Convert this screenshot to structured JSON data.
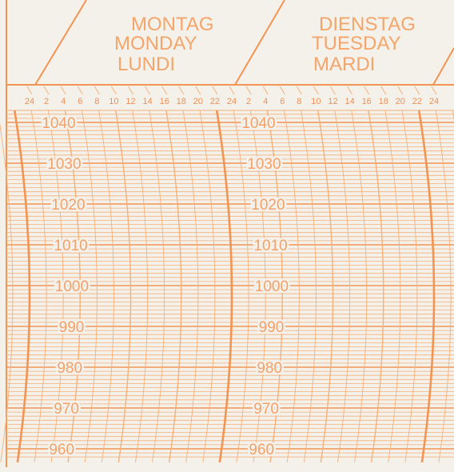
{
  "days": [
    {
      "lines": [
        "MONTAG",
        "MONDAY",
        "LUNDI"
      ]
    },
    {
      "lines": [
        "DIENSTAG",
        "TUESDAY",
        "MARDI"
      ]
    }
  ],
  "hour_ticks": [
    "24",
    "2",
    "4",
    "6",
    "8",
    "10",
    "12",
    "14",
    "16",
    "18",
    "20",
    "22"
  ],
  "trailing_hour_ticks": [
    "24",
    "2"
  ],
  "pressure_values": [
    "1040",
    "1030",
    "1020",
    "1010",
    "1000",
    "990",
    "980",
    "970",
    "960"
  ],
  "colors": {
    "background": "#f3f1ea",
    "grid": "#f6b07a",
    "grid_major": "#f39452",
    "text": "#f4a068"
  }
}
